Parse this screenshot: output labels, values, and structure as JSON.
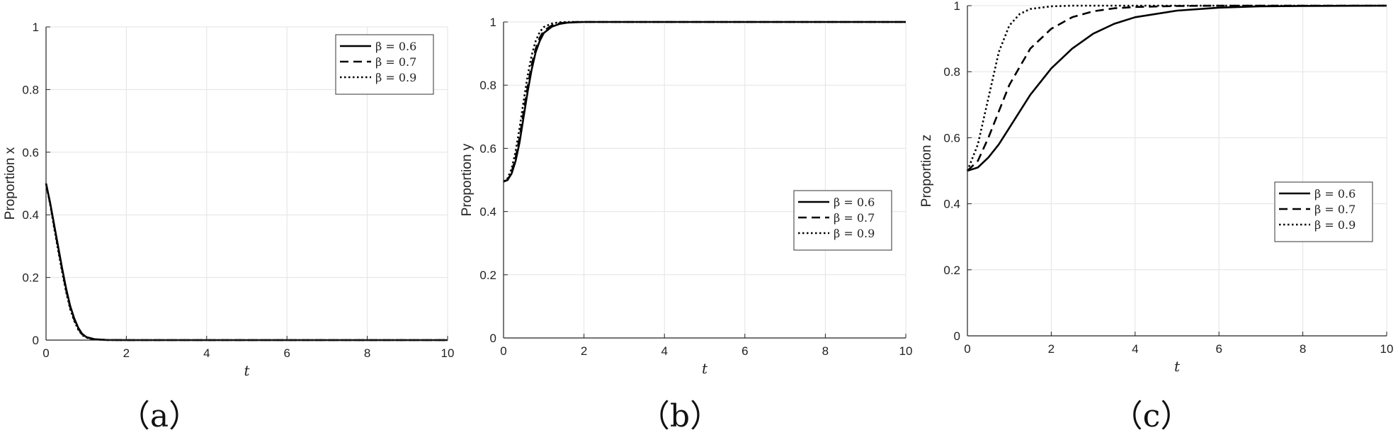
{
  "chart_data": [
    {
      "type": "line",
      "caption": "（a）",
      "xlabel": "t",
      "ylabel": "Proportion x",
      "xlim": [
        0,
        10
      ],
      "ylim": [
        0,
        1
      ],
      "xticks": [
        "0",
        "2",
        "4",
        "6",
        "8",
        "10"
      ],
      "yticks": [
        "0",
        "0.2",
        "0.4",
        "0.6",
        "0.8",
        "1"
      ],
      "grid": true,
      "legend_position": "top-right",
      "series": [
        {
          "name": "β = 0.6",
          "style": "solid",
          "x": [
            0,
            0.1,
            0.2,
            0.3,
            0.4,
            0.5,
            0.6,
            0.7,
            0.8,
            0.9,
            1.0,
            1.2,
            1.5,
            2,
            4,
            6,
            8,
            10
          ],
          "y": [
            0.5,
            0.44,
            0.37,
            0.3,
            0.23,
            0.165,
            0.11,
            0.07,
            0.04,
            0.02,
            0.01,
            0.003,
            0.0005,
            0,
            0,
            0,
            0,
            0
          ]
        },
        {
          "name": "β = 0.7",
          "style": "dashed",
          "x": [
            0,
            0.1,
            0.2,
            0.3,
            0.4,
            0.5,
            0.6,
            0.7,
            0.8,
            0.9,
            1.0,
            1.2,
            1.5,
            2,
            4,
            6,
            8,
            10
          ],
          "y": [
            0.5,
            0.438,
            0.366,
            0.295,
            0.225,
            0.16,
            0.105,
            0.066,
            0.037,
            0.018,
            0.009,
            0.0025,
            0.0004,
            0,
            0,
            0,
            0,
            0
          ]
        },
        {
          "name": "β = 0.9",
          "style": "dotted",
          "x": [
            0,
            0.1,
            0.2,
            0.3,
            0.4,
            0.5,
            0.6,
            0.7,
            0.8,
            0.9,
            1.0,
            1.2,
            1.5,
            2,
            4,
            6,
            8,
            10
          ],
          "y": [
            0.5,
            0.435,
            0.36,
            0.288,
            0.218,
            0.154,
            0.1,
            0.062,
            0.034,
            0.016,
            0.008,
            0.002,
            0.0003,
            0,
            0,
            0,
            0,
            0
          ]
        }
      ]
    },
    {
      "type": "line",
      "caption": "（b）",
      "xlabel": "t",
      "ylabel": "Proportion y",
      "xlim": [
        0,
        10
      ],
      "ylim": [
        0,
        1
      ],
      "xticks": [
        "0",
        "2",
        "4",
        "6",
        "8",
        "10"
      ],
      "yticks": [
        "0",
        "0.2",
        "0.4",
        "0.6",
        "0.8",
        "1"
      ],
      "grid": true,
      "legend_position": "center-right",
      "series": [
        {
          "name": "β = 0.6",
          "style": "solid",
          "x": [
            0,
            0.1,
            0.2,
            0.3,
            0.4,
            0.5,
            0.6,
            0.7,
            0.8,
            0.9,
            1.0,
            1.2,
            1.4,
            1.6,
            1.8,
            2,
            3,
            10
          ],
          "y": [
            0.495,
            0.5,
            0.52,
            0.56,
            0.62,
            0.7,
            0.78,
            0.85,
            0.905,
            0.94,
            0.965,
            0.985,
            0.994,
            0.998,
            0.999,
            1.0,
            1.0,
            1.0
          ]
        },
        {
          "name": "β = 0.7",
          "style": "dashed",
          "x": [
            0,
            0.1,
            0.2,
            0.3,
            0.4,
            0.5,
            0.6,
            0.7,
            0.8,
            0.9,
            1.0,
            1.2,
            1.4,
            1.6,
            1.8,
            2,
            3,
            10
          ],
          "y": [
            0.495,
            0.5,
            0.525,
            0.57,
            0.635,
            0.715,
            0.795,
            0.865,
            0.915,
            0.95,
            0.972,
            0.989,
            0.996,
            0.999,
            1.0,
            1.0,
            1.0,
            1.0
          ]
        },
        {
          "name": "β = 0.9",
          "style": "dotted",
          "x": [
            0,
            0.1,
            0.2,
            0.3,
            0.4,
            0.5,
            0.6,
            0.7,
            0.8,
            0.9,
            1.0,
            1.2,
            1.4,
            1.6,
            1.8,
            2,
            3,
            10
          ],
          "y": [
            0.495,
            0.505,
            0.535,
            0.59,
            0.665,
            0.75,
            0.83,
            0.895,
            0.94,
            0.968,
            0.984,
            0.995,
            0.999,
            1.0,
            1.0,
            1.0,
            1.0,
            1.0
          ]
        }
      ]
    },
    {
      "type": "line",
      "caption": "（c）",
      "xlabel": "t",
      "ylabel": "Proportion z",
      "xlim": [
        0,
        10
      ],
      "ylim": [
        0,
        1
      ],
      "xticks": [
        "0",
        "2",
        "4",
        "6",
        "8",
        "10"
      ],
      "yticks": [
        "0",
        "0.2",
        "0.4",
        "0.6",
        "0.8",
        "1"
      ],
      "grid": true,
      "legend_position": "center-right",
      "series": [
        {
          "name": "β = 0.6",
          "style": "solid",
          "x": [
            0,
            0.25,
            0.5,
            0.75,
            1,
            1.5,
            2,
            2.5,
            3,
            3.5,
            4,
            5,
            6,
            7,
            8,
            10
          ],
          "y": [
            0.5,
            0.51,
            0.54,
            0.58,
            0.63,
            0.73,
            0.81,
            0.87,
            0.915,
            0.945,
            0.965,
            0.985,
            0.994,
            0.998,
            0.999,
            1.0
          ]
        },
        {
          "name": "β = 0.7",
          "style": "dashed",
          "x": [
            0,
            0.25,
            0.5,
            0.75,
            1,
            1.5,
            2,
            2.5,
            3,
            3.5,
            4,
            5,
            6,
            7,
            8,
            10
          ],
          "y": [
            0.5,
            0.53,
            0.6,
            0.68,
            0.76,
            0.87,
            0.93,
            0.965,
            0.983,
            0.992,
            0.996,
            0.999,
            1.0,
            1.0,
            1.0,
            1.0
          ]
        },
        {
          "name": "β = 0.9",
          "style": "dotted",
          "x": [
            0,
            0.25,
            0.5,
            0.75,
            1,
            1.25,
            1.5,
            2,
            2.5,
            3,
            4,
            5,
            6,
            8,
            10
          ],
          "y": [
            0.5,
            0.58,
            0.72,
            0.86,
            0.94,
            0.975,
            0.99,
            0.998,
            1.0,
            1.0,
            1.0,
            1.0,
            1.0,
            1.0,
            1.0
          ]
        }
      ]
    }
  ]
}
